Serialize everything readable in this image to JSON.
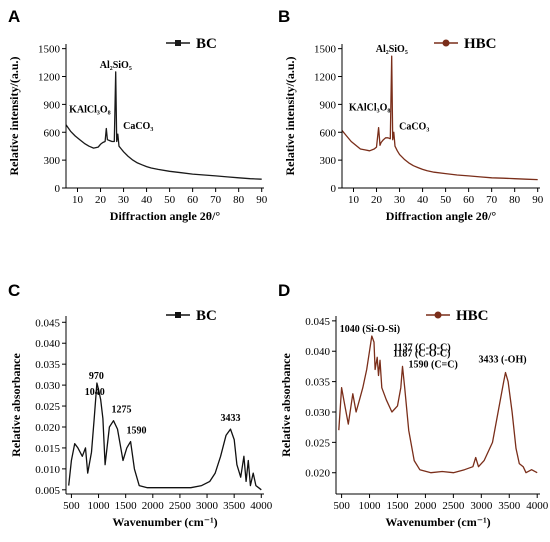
{
  "chart_data": [
    {
      "panel": "A",
      "type": "line",
      "xlabel": "Diffraction angle 2θ/°",
      "ylabel": "Relative intensity/(a.u.)",
      "xlim": [
        5,
        91
      ],
      "ylim": [
        0,
        1550
      ],
      "xticks": [
        10,
        20,
        30,
        40,
        50,
        60,
        70,
        80,
        90
      ],
      "yticks": [
        0,
        300,
        600,
        900,
        1200,
        1500
      ],
      "series": [
        {
          "name": "BC",
          "color": "#1a1a1a",
          "marker": "square",
          "x": [
            5,
            7,
            9,
            11,
            13,
            15,
            17,
            19,
            20,
            21,
            22,
            22.5,
            23,
            24,
            25,
            26,
            26.6,
            27,
            27.5,
            28,
            29,
            30,
            32,
            34,
            36,
            38,
            40,
            42,
            45,
            50,
            55,
            60,
            65,
            70,
            75,
            80,
            85,
            90
          ],
          "y": [
            680,
            610,
            560,
            520,
            480,
            450,
            430,
            440,
            470,
            490,
            500,
            640,
            520,
            510,
            500,
            500,
            1250,
            500,
            580,
            450,
            420,
            390,
            340,
            300,
            270,
            250,
            230,
            215,
            200,
            180,
            165,
            150,
            140,
            130,
            120,
            110,
            100,
            95
          ]
        }
      ],
      "annotations": [
        {
          "text": "KAlCl₃O₈",
          "x": 22,
          "y": 640
        },
        {
          "text": "Al₂SiO₅",
          "x": 26.6,
          "y": 1250
        },
        {
          "text": "CaCO₃",
          "x": 28.5,
          "y": 580
        }
      ]
    },
    {
      "panel": "B",
      "type": "line",
      "xlabel": "Diffraction angle 2θ/°",
      "ylabel": "Relative intensity/(a.u.)",
      "xlim": [
        5,
        91
      ],
      "ylim": [
        0,
        1550
      ],
      "xticks": [
        10,
        20,
        30,
        40,
        50,
        60,
        70,
        80,
        90
      ],
      "yticks": [
        0,
        300,
        600,
        900,
        1200,
        1500
      ],
      "series": [
        {
          "name": "HBC",
          "color": "#7a2e1a",
          "marker": "circle",
          "x": [
            5,
            7,
            9,
            11,
            13,
            15,
            17,
            19,
            20,
            20.9,
            21.5,
            22,
            23,
            24,
            25,
            26,
            26.6,
            27,
            27.5,
            28,
            29,
            30,
            32,
            34,
            36,
            38,
            40,
            42,
            45,
            50,
            55,
            60,
            65,
            70,
            75,
            80,
            85,
            90
          ],
          "y": [
            620,
            560,
            500,
            460,
            420,
            410,
            400,
            420,
            440,
            650,
            460,
            490,
            520,
            540,
            540,
            530,
            1420,
            520,
            600,
            450,
            400,
            360,
            310,
            270,
            240,
            220,
            200,
            185,
            170,
            155,
            140,
            130,
            120,
            110,
            105,
            100,
            95,
            90
          ]
        }
      ],
      "annotations": [
        {
          "text": "KAlCl₃O₈",
          "x": 21,
          "y": 650
        },
        {
          "text": "Al₂SiO₅",
          "x": 26.6,
          "y": 1420
        },
        {
          "text": "CaCO₃",
          "x": 28.5,
          "y": 600
        }
      ]
    },
    {
      "panel": "C",
      "type": "line",
      "xlabel": "Wavenumber (cm⁻¹)",
      "ylabel": "Relative absorbance",
      "xlim": [
        400,
        4050
      ],
      "ylim": [
        0.004,
        0.0465
      ],
      "xticks": [
        500,
        1000,
        1500,
        2000,
        2500,
        3000,
        3500,
        4000
      ],
      "yticks": [
        0.005,
        0.01,
        0.015,
        0.02,
        0.025,
        0.03,
        0.035,
        0.04,
        0.045
      ],
      "series": [
        {
          "name": "BC",
          "color": "#111111",
          "marker": "square",
          "x": [
            450,
            500,
            560,
            620,
            700,
            760,
            800,
            870,
            920,
            970,
            1000,
            1040,
            1080,
            1120,
            1200,
            1275,
            1350,
            1450,
            1520,
            1590,
            1660,
            1750,
            1900,
            2100,
            2400,
            2700,
            2900,
            3050,
            3150,
            3250,
            3350,
            3433,
            3500,
            3550,
            3620,
            3680,
            3720,
            3760,
            3800,
            3850,
            3900,
            3950,
            4000
          ],
          "y": [
            0.006,
            0.012,
            0.016,
            0.015,
            0.013,
            0.015,
            0.009,
            0.014,
            0.022,
            0.0305,
            0.029,
            0.0265,
            0.022,
            0.011,
            0.02,
            0.0215,
            0.0195,
            0.012,
            0.015,
            0.0165,
            0.01,
            0.006,
            0.0055,
            0.0055,
            0.0055,
            0.0055,
            0.006,
            0.007,
            0.009,
            0.013,
            0.018,
            0.0195,
            0.017,
            0.011,
            0.008,
            0.013,
            0.007,
            0.012,
            0.006,
            0.009,
            0.006,
            0.0055,
            0.005
          ]
        }
      ],
      "annotations": [
        {
          "text": "970",
          "x": 970,
          "y": 0.0305
        },
        {
          "text": "1040",
          "x": 1040,
          "y": 0.0265
        },
        {
          "text": "1275",
          "x": 1275,
          "y": 0.0215
        },
        {
          "text": "1590",
          "x": 1590,
          "y": 0.0165
        },
        {
          "text": "3433",
          "x": 3433,
          "y": 0.0195
        }
      ]
    },
    {
      "panel": "D",
      "type": "line",
      "xlabel": "Wavenumber (cm⁻¹)",
      "ylabel": "Relative absorbance",
      "xlim": [
        400,
        4050
      ],
      "ylim": [
        0.0165,
        0.0458
      ],
      "xticks": [
        500,
        1000,
        1500,
        2000,
        2500,
        3000,
        3500,
        4000
      ],
      "yticks": [
        0.02,
        0.025,
        0.03,
        0.035,
        0.04,
        0.045
      ],
      "series": [
        {
          "name": "HBC",
          "color": "#7a2e1a",
          "marker": "circle",
          "x": [
            450,
            500,
            560,
            620,
            700,
            760,
            820,
            880,
            950,
            1000,
            1040,
            1080,
            1100,
            1137,
            1160,
            1187,
            1220,
            1300,
            1400,
            1500,
            1560,
            1590,
            1630,
            1700,
            1800,
            1900,
            2100,
            2300,
            2500,
            2700,
            2850,
            2900,
            2950,
            3050,
            3200,
            3300,
            3400,
            3433,
            3480,
            3550,
            3620,
            3680,
            3750,
            3800,
            3900,
            4000
          ],
          "y": [
            0.027,
            0.034,
            0.031,
            0.028,
            0.033,
            0.03,
            0.032,
            0.034,
            0.037,
            0.04,
            0.0425,
            0.0415,
            0.037,
            0.039,
            0.036,
            0.0385,
            0.034,
            0.032,
            0.03,
            0.031,
            0.034,
            0.0375,
            0.034,
            0.027,
            0.022,
            0.0205,
            0.02,
            0.0202,
            0.02,
            0.0205,
            0.021,
            0.0225,
            0.021,
            0.022,
            0.025,
            0.03,
            0.035,
            0.0365,
            0.035,
            0.03,
            0.024,
            0.0215,
            0.021,
            0.02,
            0.0205,
            0.02
          ]
        }
      ],
      "annotations": [
        {
          "text": "1040 (Si-O-Si)",
          "x": 1040,
          "y": 0.0425
        },
        {
          "text": "1137 (C-O-C)",
          "x": 1137,
          "y": 0.039
        },
        {
          "text": "1187 (C-O-C)",
          "x": 1187,
          "y": 0.0385
        },
        {
          "text": "1590 (C=C)",
          "x": 1590,
          "y": 0.0375
        },
        {
          "text": "3433 (-OH)",
          "x": 3433,
          "y": 0.0365
        }
      ]
    }
  ]
}
